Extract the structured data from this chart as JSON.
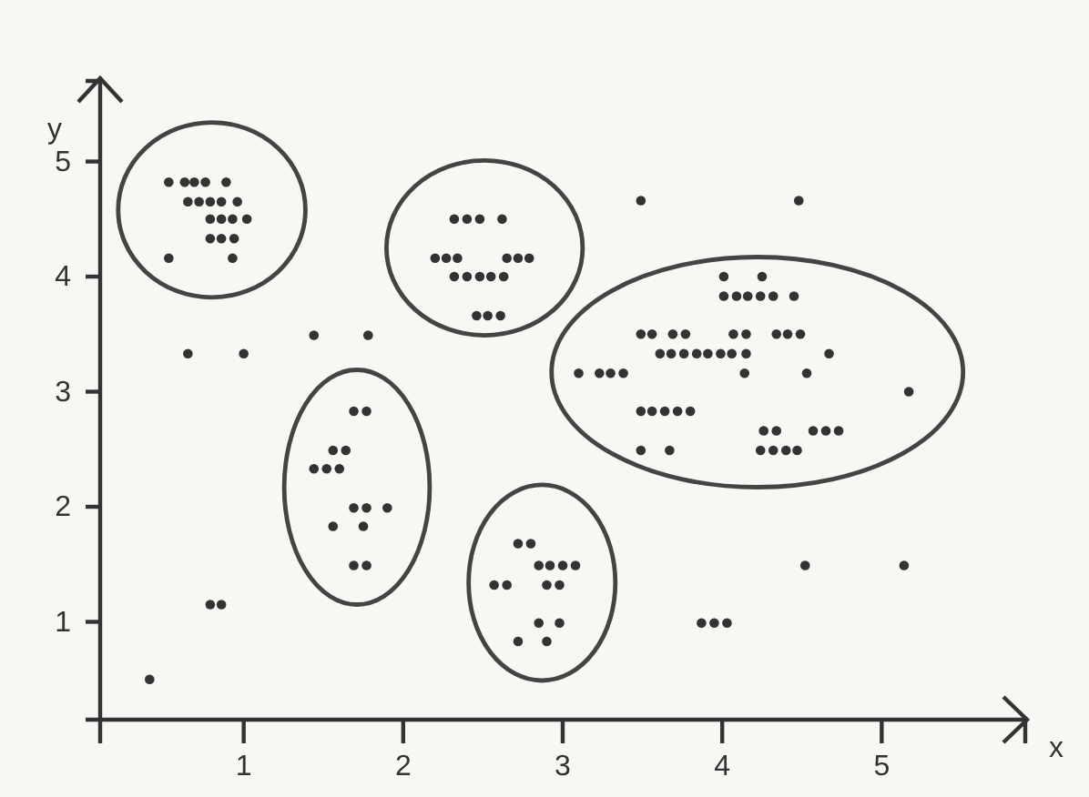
{
  "chart_data": {
    "type": "scatter",
    "xlabel": "x",
    "ylabel": "y",
    "xlim": [
      0.1,
      5.9
    ],
    "ylim": [
      0.15,
      5.7
    ],
    "xticks": [
      1,
      2,
      3,
      4,
      5
    ],
    "yticks": [
      1,
      2,
      3,
      4,
      5
    ],
    "grid": false,
    "marker": "circle",
    "color": "#333333",
    "x": [
      0.53,
      0.63,
      0.69,
      0.76,
      0.89,
      0.65,
      0.72,
      0.79,
      0.86,
      0.96,
      0.79,
      0.86,
      0.93,
      1.02,
      0.79,
      0.86,
      0.94,
      0.53,
      0.93,
      1.44,
      1.78,
      0.65,
      1.0,
      2.32,
      2.4,
      2.48,
      2.62,
      2.2,
      2.27,
      2.34,
      2.65,
      2.72,
      2.79,
      2.32,
      2.4,
      2.48,
      2.55,
      2.63,
      2.46,
      2.53,
      2.61,
      3.49,
      4.48,
      4.01,
      4.25,
      4.01,
      4.09,
      4.16,
      4.24,
      4.32,
      4.45,
      3.49,
      3.56,
      3.69,
      3.77,
      4.07,
      4.15,
      4.34,
      4.41,
      4.49,
      3.61,
      3.68,
      3.76,
      3.84,
      3.91,
      3.99,
      4.06,
      4.15,
      4.67,
      3.1,
      3.23,
      3.3,
      3.38,
      4.14,
      4.53,
      5.17,
      3.49,
      3.56,
      3.64,
      3.72,
      3.8,
      4.26,
      4.34,
      4.57,
      4.65,
      4.73,
      3.49,
      3.67,
      4.24,
      4.32,
      4.4,
      4.47,
      1.69,
      1.77,
      1.56,
      1.64,
      1.44,
      1.52,
      1.6,
      1.69,
      1.77,
      1.9,
      1.56,
      1.75,
      1.69,
      1.77,
      0.79,
      0.86,
      0.41,
      2.72,
      2.8,
      2.85,
      2.92,
      3.0,
      3.08,
      2.57,
      2.65,
      2.9,
      2.98,
      2.85,
      2.98,
      2.72,
      2.9,
      4.52,
      5.14,
      3.87,
      3.95,
      4.03
    ],
    "values": [
      4.82,
      4.82,
      4.82,
      4.82,
      4.82,
      4.65,
      4.65,
      4.65,
      4.65,
      4.65,
      4.5,
      4.5,
      4.5,
      4.5,
      4.33,
      4.33,
      4.33,
      4.16,
      4.16,
      3.49,
      3.49,
      3.33,
      3.33,
      4.5,
      4.5,
      4.5,
      4.5,
      4.16,
      4.16,
      4.16,
      4.16,
      4.16,
      4.16,
      4.0,
      4.0,
      4.0,
      4.0,
      4.0,
      3.66,
      3.66,
      3.66,
      4.66,
      4.66,
      4.0,
      4.0,
      3.83,
      3.83,
      3.83,
      3.83,
      3.83,
      3.83,
      3.5,
      3.5,
      3.5,
      3.5,
      3.5,
      3.5,
      3.5,
      3.5,
      3.5,
      3.33,
      3.33,
      3.33,
      3.33,
      3.33,
      3.33,
      3.33,
      3.33,
      3.33,
      3.16,
      3.16,
      3.16,
      3.16,
      3.16,
      3.16,
      3.0,
      2.83,
      2.83,
      2.83,
      2.83,
      2.83,
      2.66,
      2.66,
      2.66,
      2.66,
      2.66,
      2.49,
      2.49,
      2.49,
      2.49,
      2.49,
      2.49,
      2.83,
      2.83,
      2.49,
      2.49,
      2.33,
      2.33,
      2.33,
      1.99,
      1.99,
      1.99,
      1.83,
      1.83,
      1.49,
      1.49,
      1.15,
      1.15,
      0.5,
      1.68,
      1.68,
      1.49,
      1.49,
      1.49,
      1.49,
      1.32,
      1.32,
      1.32,
      1.32,
      0.99,
      0.99,
      0.83,
      0.83,
      1.49,
      1.49,
      0.99,
      0.99,
      0.99
    ]
  }
}
